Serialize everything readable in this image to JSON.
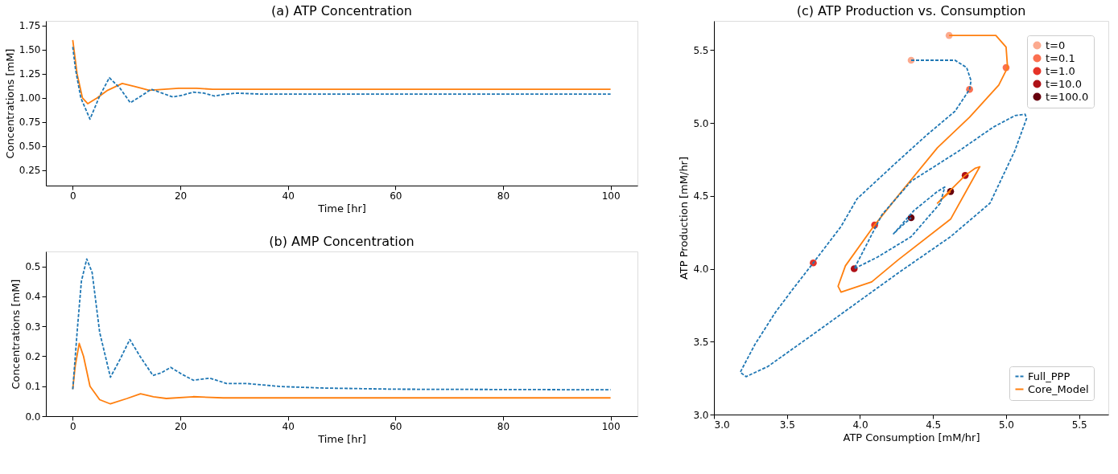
{
  "chart_data": [
    {
      "type": "line",
      "title": "(a) ATP Concentration",
      "xlabel": "Time [hr]",
      "ylabel": "Concentrations [mM]",
      "xlim": [
        -5,
        105
      ],
      "xticks": [
        0,
        20,
        40,
        60,
        80,
        100
      ],
      "ylim": [
        0.09,
        1.8
      ],
      "yticks": [
        0.25,
        {
          "value": 0.5,
          "label": "0.50"
        },
        0.75,
        {
          "value": 1,
          "label": "1.00"
        },
        1.25,
        {
          "value": 1.5,
          "label": "1.50"
        },
        1.75
      ],
      "grid": false,
      "legend": false,
      "series": [
        {
          "color": "#1f77b4",
          "line_style": "dashed",
          "x": [
            0,
            0.5,
            1.5,
            3.2,
            5,
            6.8,
            8.8,
            10.7,
            12.7,
            14.6,
            16.6,
            18.6,
            20.5,
            22.4,
            24.4,
            26.3,
            28.5,
            30.5,
            35,
            40,
            60,
            80,
            100
          ],
          "values": [
            1.53,
            1.3,
            1.0,
            0.78,
            1.02,
            1.21,
            1.1,
            0.95,
            1.02,
            1.09,
            1.05,
            1.01,
            1.03,
            1.06,
            1.05,
            1.02,
            1.04,
            1.05,
            1.04,
            1.04,
            1.04,
            1.04,
            1.04
          ]
        },
        {
          "color": "#ff7f0e",
          "line_style": "solid",
          "x": [
            0,
            0.8,
            1.8,
            2.8,
            4.5,
            6.5,
            9.2,
            11.5,
            14.2,
            17,
            19.7,
            23,
            26,
            30,
            40,
            100
          ],
          "values": [
            1.6,
            1.25,
            1.0,
            0.94,
            1.0,
            1.08,
            1.15,
            1.12,
            1.08,
            1.09,
            1.1,
            1.1,
            1.09,
            1.09,
            1.09,
            1.09
          ]
        }
      ]
    },
    {
      "type": "line",
      "title": "(b) AMP Concentration",
      "xlabel": "Time [hr]",
      "ylabel": "Concentrations [mM]",
      "xlim": [
        -5,
        105
      ],
      "xticks": [
        0,
        20,
        40,
        60,
        80,
        100
      ],
      "ylim": [
        0,
        0.55
      ],
      "yticks": [
        {
          "value": 0,
          "label": "0.0"
        },
        0.1,
        0.2,
        0.3,
        0.4,
        0.5
      ],
      "grid": false,
      "legend": false,
      "series": [
        {
          "color": "#1f77b4",
          "line_style": "dashed",
          "x": [
            0,
            0.85,
            1.6,
            2.6,
            3.6,
            5,
            7,
            8.8,
            10.6,
            12.5,
            14.9,
            16.5,
            18.2,
            20.3,
            22.4,
            25.5,
            28.6,
            32.4,
            38.6,
            46.3,
            60,
            80,
            100
          ],
          "values": [
            0.09,
            0.29,
            0.45,
            0.525,
            0.48,
            0.28,
            0.13,
            0.19,
            0.256,
            0.2,
            0.136,
            0.145,
            0.163,
            0.14,
            0.12,
            0.127,
            0.109,
            0.109,
            0.099,
            0.094,
            0.09,
            0.089,
            0.088
          ]
        },
        {
          "color": "#ff7f0e",
          "line_style": "solid",
          "x": [
            0,
            0.46,
            1.2,
            2,
            3.2,
            5,
            7,
            10.1,
            12.6,
            15,
            17.4,
            22.4,
            28,
            40,
            100
          ],
          "values": [
            0.09,
            0.168,
            0.243,
            0.2,
            0.1,
            0.055,
            0.041,
            0.059,
            0.075,
            0.065,
            0.059,
            0.065,
            0.061,
            0.061,
            0.061
          ]
        }
      ]
    },
    {
      "type": "line",
      "title": "(c) ATP Production vs. Consumption",
      "xlabel": "ATP Consumption [mM/hr]",
      "ylabel": "ATP Production [mM/hr]",
      "xlim": [
        3.0,
        5.7
      ],
      "xticks": [
        {
          "value": 3,
          "label": "3.0"
        },
        3.5,
        {
          "value": 4,
          "label": "4.0"
        },
        4.5,
        {
          "value": 5,
          "label": "5.0"
        },
        5.5
      ],
      "ylim": [
        3.0,
        5.7
      ],
      "yticks": [
        {
          "value": 3,
          "label": "3.0"
        },
        3.5,
        {
          "value": 4,
          "label": "4.0"
        },
        4.5,
        {
          "value": 5,
          "label": "5.0"
        },
        5.5
      ],
      "grid": false,
      "legend": "right",
      "series": [
        {
          "name": "Full_PPP",
          "type": "line",
          "color": "#1f77b4",
          "line_style": "dashed",
          "x": [
            4.35,
            4.65,
            4.73,
            4.76,
            4.75,
            4.65,
            4.46,
            4.25,
            3.98,
            3.87,
            3.68,
            3.54,
            3.42,
            3.28,
            3.18,
            3.22,
            3.37,
            3.72,
            4.26,
            4.62,
            4.89,
            5.06,
            5.14,
            5.13,
            5.06,
            4.91,
            4.68,
            4.35,
            4.15,
            3.96,
            4.12,
            4.35,
            4.55,
            4.58,
            4.53,
            4.37,
            4.23,
            4.26,
            4.35
          ],
          "values": [
            5.43,
            5.43,
            5.38,
            5.29,
            5.23,
            5.08,
            4.92,
            4.73,
            4.48,
            4.29,
            4.04,
            3.86,
            3.7,
            3.48,
            3.29,
            3.26,
            3.33,
            3.58,
            3.97,
            4.22,
            4.45,
            4.81,
            5.03,
            5.06,
            5.05,
            4.97,
            4.81,
            4.6,
            4.37,
            4.0,
            4.08,
            4.22,
            4.45,
            4.56,
            4.53,
            4.4,
            4.24,
            4.27,
            4.35
          ]
        },
        {
          "name": "Core_Model",
          "type": "line",
          "color": "#ff7f0e",
          "line_style": "solid",
          "x": [
            4.61,
            4.93,
            5.0,
            5.01,
            4.95,
            4.75,
            4.53,
            4.26,
            4.1,
            3.9,
            3.85,
            3.87,
            4.08,
            4.26,
            4.62,
            4.82,
            4.79,
            4.72,
            4.53,
            4.62
          ],
          "values": [
            5.6,
            5.6,
            5.52,
            5.38,
            5.26,
            5.04,
            4.83,
            4.5,
            4.3,
            4.02,
            3.88,
            3.84,
            3.91,
            4.06,
            4.34,
            4.7,
            4.69,
            4.64,
            4.45,
            4.53
          ]
        },
        {
          "name": "t=0",
          "type": "scatter",
          "marker": "circle",
          "color": "#fcaa8f",
          "x": [
            4.35,
            4.61
          ],
          "values": [
            5.43,
            5.6
          ]
        },
        {
          "name": "t=0.1",
          "type": "scatter",
          "marker": "circle",
          "color": "#fb7050",
          "x": [
            4.75,
            5.0
          ],
          "values": [
            5.23,
            5.38
          ]
        },
        {
          "name": "t=1.0",
          "type": "scatter",
          "marker": "circle",
          "color": "#e63328",
          "x": [
            3.68,
            4.1
          ],
          "values": [
            4.04,
            4.3
          ]
        },
        {
          "name": "t=10.0",
          "type": "scatter",
          "marker": "circle",
          "color": "#af1117",
          "x": [
            3.96,
            4.72
          ],
          "values": [
            4.0,
            4.64
          ]
        },
        {
          "name": "t=100.0",
          "type": "scatter",
          "marker": "circle",
          "color": "#67000d",
          "x": [
            4.35,
            4.62
          ],
          "values": [
            4.35,
            4.53
          ]
        }
      ]
    }
  ]
}
